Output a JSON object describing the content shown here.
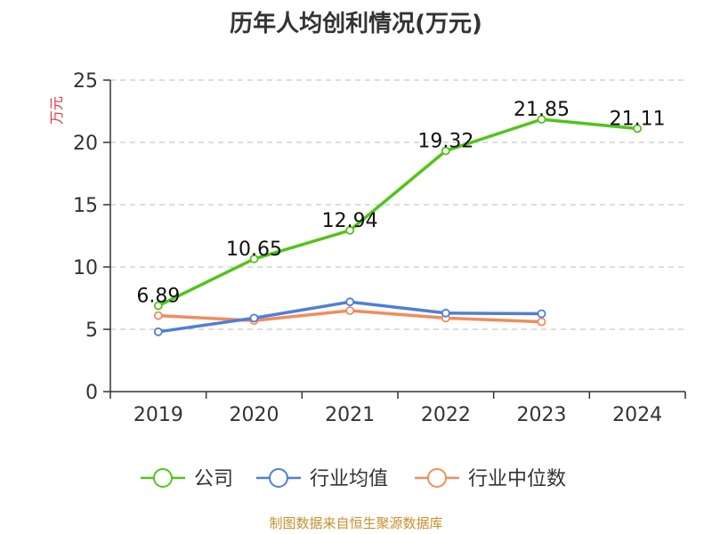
{
  "chart_data": {
    "type": "line",
    "title": "历年人均创利情况(万元)",
    "ylabel": "万元",
    "xlabel": "",
    "ylim": [
      0,
      25
    ],
    "yticks": [
      0,
      5,
      10,
      15,
      20,
      25
    ],
    "grid": true,
    "legend_position": "bottom",
    "categories": [
      "2019",
      "2020",
      "2021",
      "2022",
      "2023",
      "2024"
    ],
    "series": [
      {
        "name": "公司",
        "color": "#52c41a",
        "values": [
          6.89,
          10.65,
          12.94,
          19.32,
          21.85,
          21.11
        ],
        "labels": [
          "6.89",
          "10.65",
          "12.94",
          "19.32",
          "21.85",
          "21.11"
        ]
      },
      {
        "name": "行业均值",
        "color": "#4e7fd8",
        "values": [
          4.8,
          5.9,
          7.2,
          6.3,
          6.25,
          null
        ]
      },
      {
        "name": "行业中位数",
        "color": "#f28c5c",
        "values": [
          6.1,
          5.7,
          6.5,
          5.9,
          5.6,
          null
        ]
      }
    ]
  },
  "colors": {
    "axis": "#333333",
    "grid": "#bbbbbb",
    "unit": "#e0383e",
    "source": "#c8902c"
  },
  "footer": {
    "source": "制图数据来自恒生聚源数据库"
  }
}
